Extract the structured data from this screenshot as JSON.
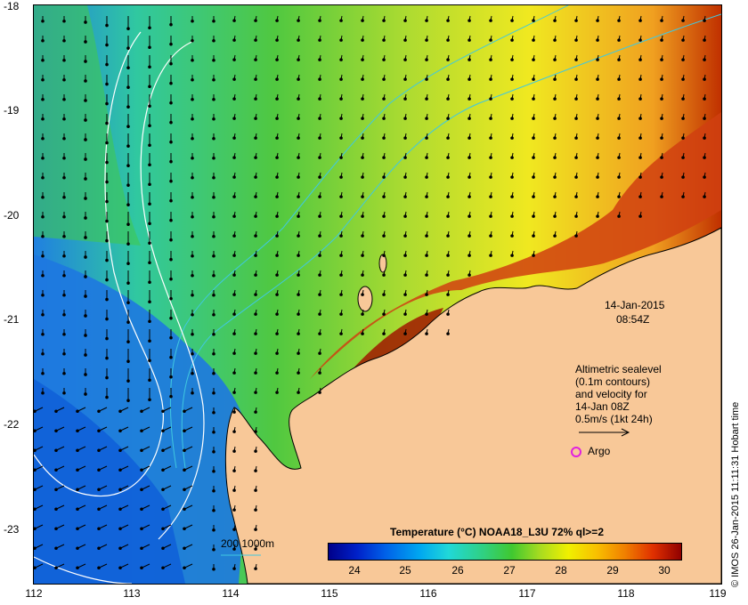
{
  "map": {
    "y_axis": [
      "-18",
      "-19",
      "-20",
      "-21",
      "-22",
      "-23"
    ],
    "x_axis": [
      "112",
      "113",
      "114",
      "115",
      "116",
      "117",
      "118",
      "119"
    ],
    "lat_range": [
      -23.5,
      -18
    ],
    "lon_range": [
      112,
      119
    ],
    "land_color": "#f8c898",
    "contour_color": "#ffffff",
    "isobath_color": "#40c8e0"
  },
  "annotations": {
    "date": "14-Jan-2015",
    "time": "08:54Z",
    "sealevel_lines": [
      "Altimetric sealevel",
      "(0.1m contours)",
      "and velocity for",
      "14-Jan 08Z",
      "0.5m/s (1kt 24h)"
    ],
    "argo_label": "Argo",
    "argo_color": "#e020e0",
    "isobath_label": "200  1000m",
    "credit": "© IMOS 26-Jan-2015 11:11:31 Hobart time"
  },
  "legend": {
    "title": "Temperature (°C) NOAA18_L3U 72% ql>=2",
    "ticks": [
      "24",
      "25",
      "26",
      "27",
      "28",
      "29",
      "30"
    ],
    "min": 23.5,
    "max": 30.3
  }
}
